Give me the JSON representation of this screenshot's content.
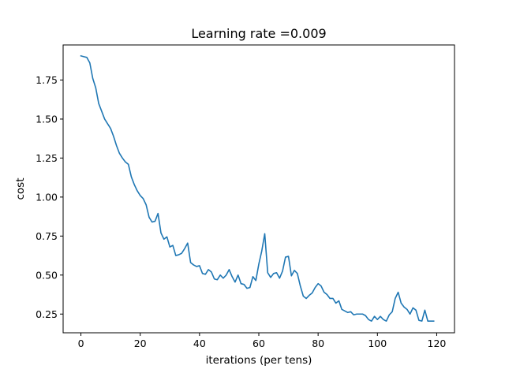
{
  "chart_data": {
    "type": "line",
    "title": "Learning rate =0.009",
    "xlabel": "iterations (per tens)",
    "ylabel": "cost",
    "xlim": [
      -6,
      126
    ],
    "ylim": [
      0.13,
      1.975
    ],
    "x_ticks": [
      0,
      20,
      40,
      60,
      80,
      100,
      120
    ],
    "x_tick_labels": [
      "0",
      "20",
      "40",
      "60",
      "80",
      "100",
      "120"
    ],
    "y_ticks": [
      0.25,
      0.5,
      0.75,
      1.0,
      1.25,
      1.5,
      1.75
    ],
    "y_tick_labels": [
      "0.25",
      "0.50",
      "0.75",
      "1.00",
      "1.25",
      "1.50",
      "1.75"
    ],
    "grid": false,
    "legend": "none",
    "series": [
      {
        "color": "#1f77b4",
        "x": [
          0,
          1,
          2,
          3,
          4,
          5,
          6,
          7,
          8,
          9,
          10,
          11,
          12,
          13,
          14,
          15,
          16,
          17,
          18,
          19,
          20,
          21,
          22,
          23,
          24,
          25,
          26,
          27,
          28,
          29,
          30,
          31,
          32,
          33,
          34,
          35,
          36,
          37,
          38,
          39,
          40,
          41,
          42,
          43,
          44,
          45,
          46,
          47,
          48,
          49,
          50,
          51,
          52,
          53,
          54,
          55,
          56,
          57,
          58,
          59,
          60,
          61,
          62,
          63,
          64,
          65,
          66,
          67,
          68,
          69,
          70,
          71,
          72,
          73,
          74,
          75,
          76,
          77,
          78,
          79,
          80,
          81,
          82,
          83,
          84,
          85,
          86,
          87,
          88,
          89,
          90,
          91,
          92,
          93,
          94,
          95,
          96,
          97,
          98,
          99,
          100,
          101,
          102,
          103,
          104,
          105,
          106,
          107,
          108,
          109,
          110,
          111,
          112,
          113,
          114,
          115,
          116,
          117,
          118,
          119
        ],
        "values": [
          1.905,
          1.9,
          1.895,
          1.86,
          1.76,
          1.7,
          1.6,
          1.55,
          1.5,
          1.47,
          1.44,
          1.39,
          1.33,
          1.28,
          1.25,
          1.225,
          1.21,
          1.13,
          1.08,
          1.04,
          1.01,
          0.99,
          0.95,
          0.87,
          0.84,
          0.845,
          0.895,
          0.77,
          0.73,
          0.745,
          0.68,
          0.69,
          0.625,
          0.63,
          0.64,
          0.67,
          0.705,
          0.58,
          0.565,
          0.555,
          0.56,
          0.51,
          0.505,
          0.535,
          0.52,
          0.475,
          0.47,
          0.5,
          0.48,
          0.5,
          0.535,
          0.49,
          0.455,
          0.5,
          0.445,
          0.44,
          0.415,
          0.42,
          0.49,
          0.465,
          0.57,
          0.655,
          0.765,
          0.515,
          0.485,
          0.51,
          0.515,
          0.48,
          0.525,
          0.615,
          0.62,
          0.495,
          0.53,
          0.51,
          0.43,
          0.365,
          0.35,
          0.37,
          0.385,
          0.42,
          0.445,
          0.43,
          0.39,
          0.375,
          0.35,
          0.35,
          0.32,
          0.335,
          0.28,
          0.27,
          0.26,
          0.265,
          0.245,
          0.25,
          0.25,
          0.25,
          0.24,
          0.215,
          0.205,
          0.235,
          0.215,
          0.235,
          0.215,
          0.205,
          0.245,
          0.265,
          0.35,
          0.39,
          0.32,
          0.295,
          0.28,
          0.25,
          0.29,
          0.275,
          0.21,
          0.205,
          0.275,
          0.205,
          0.205,
          0.205
        ]
      }
    ]
  }
}
